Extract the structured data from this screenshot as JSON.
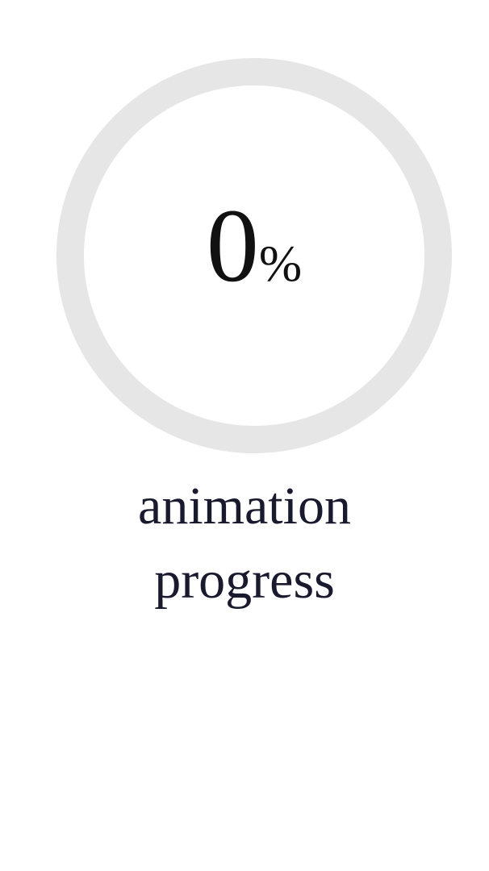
{
  "progress": {
    "value": "0",
    "unit": "%",
    "fraction": 0,
    "track_color": "#e6e6e6",
    "fill_color": "#4a90e2"
  },
  "caption": {
    "line1": "animation",
    "line2": "progress"
  }
}
